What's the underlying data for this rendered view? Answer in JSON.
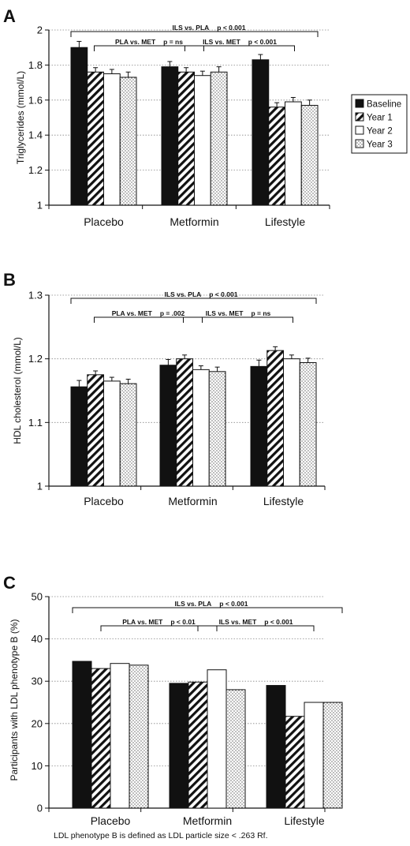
{
  "chart_data": [
    {
      "panel": "A",
      "type": "bar",
      "ylabel": "Triglycerides (mmol/L)",
      "ylim": [
        1,
        2
      ],
      "yticks": [
        "1",
        "1.2",
        "1.4",
        "1.6",
        "1.8",
        "2"
      ],
      "grid": "dotted horizontal",
      "categories": [
        "Placebo",
        "Metformin",
        "Lifestyle"
      ],
      "legend": {
        "placement": "right",
        "items": [
          "Baseline",
          "Year 1",
          "Year 2",
          "Year 3"
        ]
      },
      "series": [
        {
          "name": "Baseline",
          "values": [
            1.9,
            1.79,
            1.83
          ],
          "err": [
            0.035,
            0.03,
            0.03
          ]
        },
        {
          "name": "Year 1",
          "values": [
            1.76,
            1.76,
            1.56
          ],
          "err": [
            0.025,
            0.025,
            0.025
          ]
        },
        {
          "name": "Year 2",
          "values": [
            1.75,
            1.74,
            1.59
          ],
          "err": [
            0.025,
            0.025,
            0.025
          ]
        },
        {
          "name": "Year 3",
          "values": [
            1.73,
            1.76,
            1.57
          ],
          "err": [
            0.03,
            0.03,
            0.03
          ]
        }
      ],
      "annotations": [
        {
          "label": "ILS vs. PLA",
          "p": "p < 0.001",
          "from": 0,
          "to": 2,
          "level": 1
        },
        {
          "label": "PLA vs. MET",
          "p": "p = ns",
          "from": 0,
          "to": 1,
          "level": 2
        },
        {
          "label": "ILS vs. MET",
          "p": "p < 0.001",
          "from": 1,
          "to": 2,
          "level": 2
        }
      ]
    },
    {
      "panel": "B",
      "type": "bar",
      "ylabel": "HDL cholesterol (mmol/L)",
      "ylim": [
        1,
        1.3
      ],
      "yticks": [
        "1",
        "1.1",
        "1.2",
        "1.3"
      ],
      "grid": "dotted horizontal",
      "categories": [
        "Placebo",
        "Metformin",
        "Lifestyle"
      ],
      "series": [
        {
          "name": "Baseline",
          "values": [
            1.156,
            1.19,
            1.188
          ],
          "err": [
            0.01,
            0.009,
            0.01
          ]
        },
        {
          "name": "Year 1",
          "values": [
            1.175,
            1.2,
            1.213
          ],
          "err": [
            0.006,
            0.006,
            0.006
          ]
        },
        {
          "name": "Year 2",
          "values": [
            1.165,
            1.183,
            1.2
          ],
          "err": [
            0.006,
            0.006,
            0.006
          ]
        },
        {
          "name": "Year 3",
          "values": [
            1.161,
            1.18,
            1.194
          ],
          "err": [
            0.007,
            0.007,
            0.007
          ]
        }
      ],
      "annotations": [
        {
          "label": "ILS vs. PLA",
          "p": "p < 0.001",
          "from": 0,
          "to": 2,
          "level": 1
        },
        {
          "label": "PLA vs. MET",
          "p": "p = .002",
          "from": 0,
          "to": 1,
          "level": 2
        },
        {
          "label": "ILS vs. MET",
          "p": "p = ns",
          "from": 1,
          "to": 2,
          "level": 2
        }
      ]
    },
    {
      "panel": "C",
      "type": "bar",
      "ylabel": "Participants with LDL phenotype B (%)",
      "ylim": [
        0,
        50
      ],
      "yticks": [
        "0",
        "10",
        "20",
        "30",
        "40",
        "50"
      ],
      "grid": "dotted horizontal",
      "categories": [
        "Placebo",
        "Metformin",
        "Lifestyle"
      ],
      "series": [
        {
          "name": "Baseline",
          "values": [
            34.7,
            29.5,
            29.0
          ],
          "err": []
        },
        {
          "name": "Year 1",
          "values": [
            33.0,
            29.8,
            21.7
          ],
          "err": []
        },
        {
          "name": "Year 2",
          "values": [
            34.2,
            32.7,
            25.0
          ],
          "err": []
        },
        {
          "name": "Year 3",
          "values": [
            33.8,
            28.0,
            25.0
          ],
          "err": []
        }
      ],
      "annotations": [
        {
          "label": "ILS vs. PLA",
          "p": "p < 0.001",
          "from": 0,
          "to": 2,
          "level": 1
        },
        {
          "label": "PLA vs. MET",
          "p": "p < 0.01",
          "from": 0,
          "to": 1,
          "level": 2
        },
        {
          "label": "ILS vs. MET",
          "p": "p < 0.001",
          "from": 1,
          "to": 2,
          "level": 2
        }
      ],
      "footnote": "LDL phenotype B is defined as LDL particle size < .263 Rf."
    }
  ]
}
